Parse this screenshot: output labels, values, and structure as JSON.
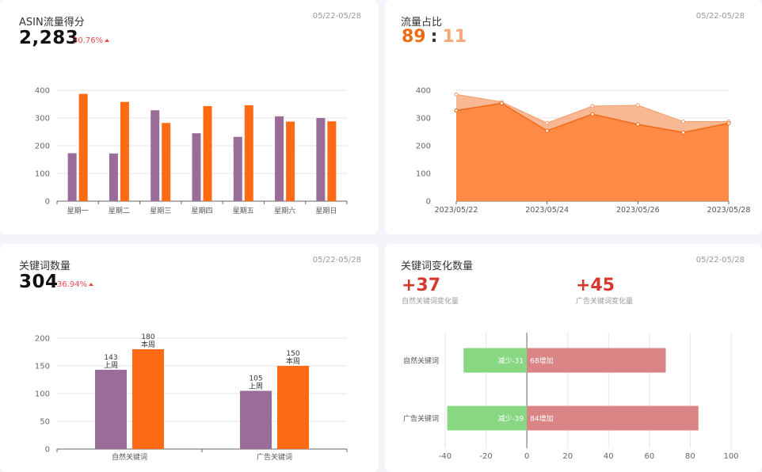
{
  "charts": {
    "asin": {
      "title": "ASIN流量得分",
      "date": "05/22-05/28",
      "kpi": "2,283",
      "change": "30.76%"
    },
    "share": {
      "title": "流量占比",
      "date": "05/22-05/28",
      "ratio_left": "89",
      "ratio_sep": ":",
      "ratio_right": "11"
    },
    "kwcount": {
      "title": "关键词数量",
      "date": "05/22-05/28",
      "kpi": "304",
      "change": "36.94%"
    },
    "kwchange": {
      "title": "关键词变化数量",
      "date": "05/22-05/28",
      "delta_natural": "+37",
      "delta_natural_label": "自然关键词变化量",
      "delta_ad": "+45",
      "delta_ad_label": "广告关键词变化量"
    }
  },
  "colors": {
    "purple": "#9a6d98",
    "orange": "#ff6a14",
    "area_main": "#ff8a45",
    "area_light": "#f7b088",
    "green": "#88d783",
    "red": "#d98585"
  },
  "chart_data": [
    {
      "type": "bar",
      "categories": [
        "星期一",
        "星期二",
        "星期三",
        "星期四",
        "星期五",
        "星期六",
        "星期日"
      ],
      "series": [
        {
          "values": [
            173,
            172,
            328,
            245,
            232,
            306,
            300
          ]
        },
        {
          "values": [
            387,
            358,
            282,
            343,
            346,
            287,
            288
          ]
        }
      ],
      "yticks": [
        0,
        100,
        200,
        300,
        400
      ],
      "ylim": [
        0,
        400
      ]
    },
    {
      "type": "area",
      "x": [
        "2023/05/22",
        "2023/05/23",
        "2023/05/24",
        "2023/05/25",
        "2023/05/26",
        "2023/05/27",
        "2023/05/28"
      ],
      "xticks": [
        "2023/05/22",
        "2023/05/24",
        "2023/05/26",
        "2023/05/28"
      ],
      "series": [
        {
          "values": [
            385,
            358,
            282,
            343,
            346,
            287,
            287
          ]
        },
        {
          "values": [
            327,
            353,
            254,
            314,
            277,
            248,
            281
          ]
        }
      ],
      "yticks": [
        0,
        100,
        200,
        300,
        400
      ],
      "ylim": [
        0,
        400
      ]
    },
    {
      "type": "bar",
      "categories": [
        "自然关键词",
        "广告关键词"
      ],
      "series": [
        {
          "name": "上周",
          "values": [
            143,
            105
          ]
        },
        {
          "name": "本周",
          "values": [
            180,
            150
          ]
        }
      ],
      "yticks": [
        0,
        50,
        100,
        150,
        200
      ],
      "ylim": [
        0,
        200
      ]
    },
    {
      "type": "bar",
      "orientation": "horizontal",
      "categories": [
        "自然关键词",
        "广告关键词"
      ],
      "series": [
        {
          "values": [
            -31,
            -39
          ],
          "labels": [
            "减少-31",
            "减少-39"
          ]
        },
        {
          "values": [
            68,
            84
          ],
          "labels": [
            "68增加",
            "84增加"
          ]
        }
      ],
      "xticks": [
        -40,
        -20,
        0,
        20,
        40,
        60,
        80,
        100
      ],
      "xlim": [
        -40,
        100
      ]
    }
  ]
}
